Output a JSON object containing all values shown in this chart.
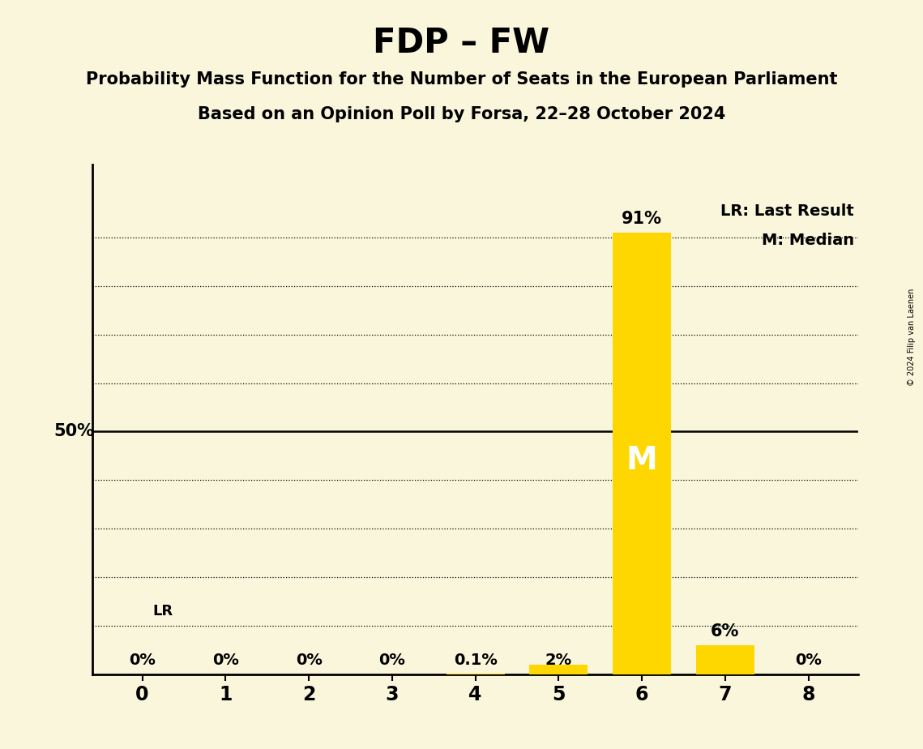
{
  "title": "FDP – FW",
  "subtitle1": "Probability Mass Function for the Number of Seats in the European Parliament",
  "subtitle2": "Based on an Opinion Poll by Forsa, 22–28 October 2024",
  "copyright": "© 2024 Filip van Laenen",
  "x_values": [
    0,
    1,
    2,
    3,
    4,
    5,
    6,
    7,
    8
  ],
  "y_values": [
    0.0,
    0.0,
    0.0,
    0.0,
    0.001,
    0.02,
    0.91,
    0.06,
    0.0
  ],
  "bar_labels": [
    "0%",
    "0%",
    "0%",
    "0%",
    "0.1%",
    "2%",
    "91%",
    "6%",
    "0%"
  ],
  "bar_color": "#FFD700",
  "background_color": "#FAF6DC",
  "median_seat": 6,
  "last_result_seat": 0,
  "fifty_pct_line": 0.5,
  "ylim": [
    0,
    1.05
  ],
  "y_gridlines": [
    0.1,
    0.2,
    0.3,
    0.4,
    0.6,
    0.7,
    0.8,
    0.9
  ],
  "legend_lr": "LR: Last Result",
  "legend_m": "M: Median",
  "lr_label": "LR",
  "m_label": "M",
  "fifty_label": "50%",
  "bar_width": 0.7
}
